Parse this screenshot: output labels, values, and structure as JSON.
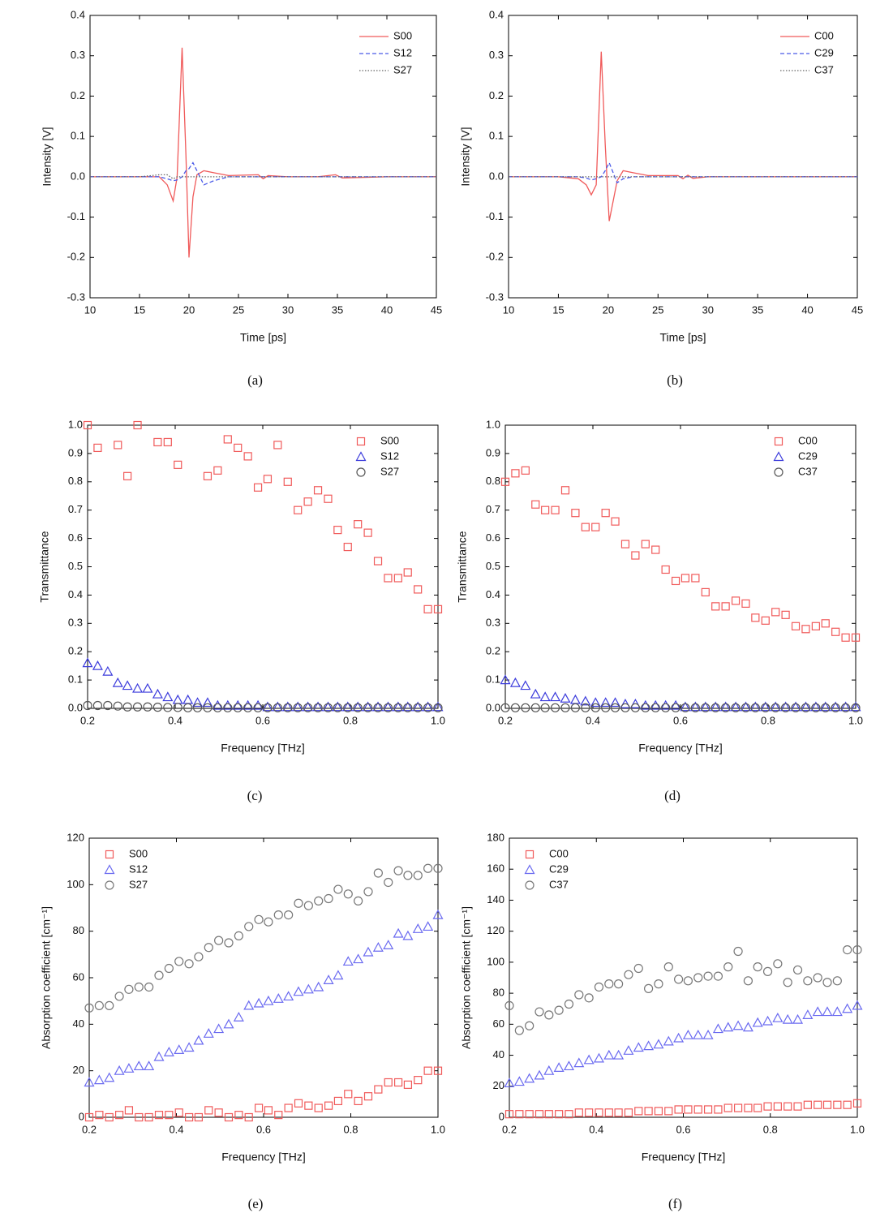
{
  "chart_data": [
    {
      "type": "line",
      "caption": "(a)",
      "x_label": "Time [ps]",
      "y_label": "Intensity [V]",
      "legend": "upper right",
      "xlim": [
        10,
        45
      ],
      "xticks": [
        10,
        15,
        20,
        25,
        30,
        35,
        40,
        45
      ],
      "ylim": [
        -0.3,
        0.4
      ],
      "yticks": [
        -0.3,
        -0.2,
        -0.1,
        {
          "value": 0,
          "label": "0.0"
        },
        0.1,
        0.2,
        0.3,
        0.4
      ],
      "x": [
        10,
        15,
        17,
        17.8,
        18.4,
        18.8,
        19.3,
        19.7,
        20,
        20.4,
        20.8,
        21.5,
        22.5,
        24,
        27,
        27.5,
        28,
        30,
        33,
        34.8,
        35.5,
        40,
        45
      ],
      "series": [
        {
          "name": "S00",
          "color": "#f05a5a",
          "style": "solid",
          "values": [
            0,
            0,
            0,
            -0.02,
            -0.06,
            0,
            0.32,
            0.05,
            -0.2,
            -0.05,
            0.005,
            0.015,
            0.01,
            0.003,
            0.005,
            -0.005,
            0.003,
            0,
            0,
            0.005,
            -0.003,
            0,
            0
          ]
        },
        {
          "name": "S12",
          "color": "#4a5ae8",
          "style": "dashed",
          "values": [
            0,
            0,
            0,
            -0.005,
            -0.01,
            -0.008,
            0,
            0.015,
            0.02,
            0.035,
            0.015,
            -0.02,
            -0.01,
            0,
            0,
            0,
            0,
            0,
            0,
            0,
            0,
            0,
            0
          ]
        },
        {
          "name": "S27",
          "color": "#666666",
          "style": "dotted",
          "values": [
            0,
            0,
            0.005,
            0.005,
            -0.005,
            0,
            0,
            0,
            0,
            0,
            0,
            0,
            0,
            0,
            0,
            0,
            0,
            0,
            0,
            0,
            0,
            0,
            0
          ]
        }
      ]
    },
    {
      "type": "line",
      "caption": "(b)",
      "x_label": "Time [ps]",
      "y_label": "Intensity [V]",
      "legend": "upper right",
      "xlim": [
        10,
        45
      ],
      "xticks": [
        10,
        15,
        20,
        25,
        30,
        35,
        40,
        45
      ],
      "ylim": [
        -0.3,
        0.4
      ],
      "yticks": [
        -0.3,
        -0.2,
        -0.1,
        {
          "value": 0,
          "label": "0.0"
        },
        0.1,
        0.2,
        0.3,
        0.4
      ],
      "x": [
        10,
        15,
        17,
        17.8,
        18.3,
        18.8,
        19.3,
        19.7,
        20.1,
        20.5,
        20.9,
        21.5,
        22.5,
        24,
        27,
        27.5,
        28,
        28.5,
        30,
        33,
        35,
        40,
        45
      ],
      "series": [
        {
          "name": "C00",
          "color": "#f05a5a",
          "style": "solid",
          "values": [
            0,
            0,
            -0.005,
            -0.02,
            -0.045,
            -0.02,
            0.31,
            0.08,
            -0.11,
            -0.06,
            -0.01,
            0.015,
            0.01,
            0.003,
            0.003,
            -0.005,
            0.004,
            -0.004,
            0,
            0,
            0,
            0,
            0
          ]
        },
        {
          "name": "C29",
          "color": "#4a5ae8",
          "style": "dashed",
          "values": [
            0,
            0,
            0,
            -0.003,
            -0.008,
            -0.005,
            0,
            0.015,
            0.035,
            0.01,
            -0.015,
            -0.005,
            0,
            0,
            0,
            0,
            0,
            0,
            0,
            0,
            0,
            0,
            0
          ]
        },
        {
          "name": "C37",
          "color": "#666666",
          "style": "dotted",
          "values": [
            0,
            0,
            0,
            0,
            0,
            0,
            0,
            0,
            0,
            0,
            0,
            0,
            0,
            0,
            0,
            0,
            0,
            0,
            0,
            0,
            0,
            0,
            0
          ]
        }
      ]
    },
    {
      "type": "scatter",
      "caption": "(c)",
      "x_label": "Frequency [THz]",
      "y_label": "Transmittance",
      "legend": "upper right",
      "xlim": [
        0.2,
        1
      ],
      "xticks": [
        0.2,
        0.4,
        0.6,
        0.8,
        {
          "value": 1,
          "label": "1.0"
        }
      ],
      "ylim": [
        0,
        1
      ],
      "yticks": [
        {
          "value": 0,
          "label": "0.0"
        },
        0.1,
        0.2,
        0.3,
        0.4,
        0.5,
        0.6,
        0.7,
        0.8,
        0.9,
        {
          "value": 1,
          "label": "1.0"
        }
      ],
      "x": [
        0.2,
        0.223,
        0.246,
        0.269,
        0.291,
        0.314,
        0.337,
        0.36,
        0.383,
        0.406,
        0.429,
        0.451,
        0.474,
        0.497,
        0.52,
        0.543,
        0.566,
        0.589,
        0.611,
        0.634,
        0.657,
        0.68,
        0.703,
        0.726,
        0.749,
        0.771,
        0.794,
        0.817,
        0.84,
        0.863,
        0.886,
        0.909,
        0.931,
        0.954,
        0.977,
        1
      ],
      "series": [
        {
          "name": "S00",
          "color": "#f05a5a",
          "marker": "square",
          "values": [
            1,
            0.92,
            null,
            0.93,
            0.82,
            1,
            null,
            0.94,
            0.94,
            0.86,
            null,
            null,
            0.82,
            0.84,
            0.95,
            0.92,
            0.89,
            0.78,
            0.81,
            0.93,
            0.8,
            0.7,
            0.73,
            0.77,
            0.74,
            0.63,
            0.57,
            0.65,
            0.62,
            0.52,
            0.46,
            0.46,
            0.48,
            0.42,
            0.35,
            0.35
          ]
        },
        {
          "name": "S12",
          "color": "#3c3cdc",
          "marker": "triangle",
          "values": [
            0.16,
            0.15,
            0.13,
            0.09,
            0.08,
            0.07,
            0.07,
            0.05,
            0.04,
            0.03,
            0.03,
            0.02,
            0.02,
            0.01,
            0.01,
            0.01,
            0.01,
            0.01,
            0.005,
            0.005,
            0.005,
            0.005,
            0.005,
            0.005,
            0.005,
            0.005,
            0.005,
            0.005,
            0.005,
            0.005,
            0.005,
            0.005,
            0.005,
            0.005,
            0.005,
            0.005
          ]
        },
        {
          "name": "S27",
          "color": "#555555",
          "marker": "circle",
          "values": [
            0.01,
            0.01,
            0.01,
            0.008,
            0.005,
            0.005,
            0.005,
            0.004,
            0.003,
            0.003,
            0.002,
            0.002,
            0.002,
            0.002,
            0.002,
            0.002,
            0.002,
            0.002,
            0.002,
            0.002,
            0.002,
            0.002,
            0.002,
            0.002,
            0.002,
            0.002,
            0.002,
            0.002,
            0.002,
            0.002,
            0.002,
            0.002,
            0.002,
            0.002,
            0.002,
            0.002
          ]
        }
      ]
    },
    {
      "type": "scatter",
      "caption": "(d)",
      "x_label": "Frequency [THz]",
      "y_label": "Transmittance",
      "legend": "upper right",
      "xlim": [
        0.2,
        1
      ],
      "xticks": [
        0.2,
        0.4,
        0.6,
        0.8,
        {
          "value": 1,
          "label": "1.0"
        }
      ],
      "ylim": [
        0,
        1
      ],
      "yticks": [
        {
          "value": 0,
          "label": "0.0"
        },
        0.1,
        0.2,
        0.3,
        0.4,
        0.5,
        0.6,
        0.7,
        0.8,
        0.9,
        {
          "value": 1,
          "label": "1.0"
        }
      ],
      "x": [
        0.2,
        0.223,
        0.246,
        0.269,
        0.291,
        0.314,
        0.337,
        0.36,
        0.383,
        0.406,
        0.429,
        0.451,
        0.474,
        0.497,
        0.52,
        0.543,
        0.566,
        0.589,
        0.611,
        0.634,
        0.657,
        0.68,
        0.703,
        0.726,
        0.749,
        0.771,
        0.794,
        0.817,
        0.84,
        0.863,
        0.886,
        0.909,
        0.931,
        0.954,
        0.977,
        1
      ],
      "series": [
        {
          "name": "C00",
          "color": "#f05a5a",
          "marker": "square",
          "values": [
            0.8,
            0.83,
            0.84,
            0.72,
            0.7,
            0.7,
            0.77,
            0.69,
            0.64,
            0.64,
            0.69,
            0.66,
            0.58,
            0.54,
            0.58,
            0.56,
            0.49,
            0.45,
            0.46,
            0.46,
            0.41,
            0.36,
            0.36,
            0.38,
            0.37,
            0.32,
            0.31,
            0.34,
            0.33,
            0.29,
            0.28,
            0.29,
            0.3,
            0.27,
            0.25,
            0.25
          ]
        },
        {
          "name": "C29",
          "color": "#3c3cdc",
          "marker": "triangle",
          "values": [
            0.1,
            0.09,
            0.08,
            0.05,
            0.04,
            0.04,
            0.035,
            0.03,
            0.025,
            0.02,
            0.02,
            0.02,
            0.015,
            0.015,
            0.01,
            0.01,
            0.01,
            0.01,
            0.005,
            0.005,
            0.005,
            0.005,
            0.005,
            0.005,
            0.005,
            0.005,
            0.005,
            0.005,
            0.005,
            0.005,
            0.005,
            0.005,
            0.005,
            0.005,
            0.005,
            0.005
          ]
        },
        {
          "name": "C37",
          "color": "#555555",
          "marker": "circle",
          "values": [
            0.002,
            0.002,
            0.002,
            0.002,
            0.002,
            0.002,
            0.002,
            0.002,
            0.002,
            0.002,
            0.002,
            0.002,
            0.002,
            0.002,
            0.002,
            0.002,
            0.002,
            0.002,
            0.002,
            0.002,
            0.002,
            0.002,
            0.002,
            0.002,
            0.002,
            0.002,
            0.002,
            0.002,
            0.002,
            0.002,
            0.002,
            0.002,
            0.002,
            0.002,
            0.002,
            0.002
          ]
        }
      ]
    },
    {
      "type": "scatter",
      "caption": "(e)",
      "x_label": "Frequency [THz]",
      "y_label": "Absorption coefficient [cm⁻¹]",
      "legend": "upper left",
      "xlim": [
        0.2,
        1
      ],
      "xticks": [
        0.2,
        0.4,
        0.6,
        0.8,
        {
          "value": 1,
          "label": "1.0"
        }
      ],
      "ylim": [
        0,
        120
      ],
      "yticks": [
        0,
        20,
        40,
        60,
        80,
        100,
        120
      ],
      "x": [
        0.2,
        0.223,
        0.246,
        0.269,
        0.291,
        0.314,
        0.337,
        0.36,
        0.383,
        0.406,
        0.429,
        0.451,
        0.474,
        0.497,
        0.52,
        0.543,
        0.566,
        0.589,
        0.611,
        0.634,
        0.657,
        0.68,
        0.703,
        0.726,
        0.749,
        0.771,
        0.794,
        0.817,
        0.84,
        0.863,
        0.886,
        0.909,
        0.931,
        0.954,
        0.977,
        1
      ],
      "series": [
        {
          "name": "S00",
          "color": "#f05a5a",
          "marker": "square",
          "values": [
            0,
            1,
            0,
            1,
            3,
            0,
            0,
            1,
            1,
            2,
            0,
            0,
            3,
            2,
            0,
            1,
            0,
            4,
            3,
            1,
            4,
            6,
            5,
            4,
            5,
            7,
            10,
            7,
            9,
            12,
            15,
            15,
            14,
            16,
            20,
            20
          ]
        },
        {
          "name": "S12",
          "color": "#6a6af0",
          "marker": "triangle",
          "values": [
            15,
            16,
            17,
            20,
            21,
            22,
            22,
            26,
            28,
            29,
            30,
            33,
            36,
            38,
            40,
            43,
            48,
            49,
            50,
            51,
            52,
            54,
            55,
            56,
            59,
            61,
            67,
            68,
            71,
            73,
            74,
            79,
            78,
            81,
            82,
            87
          ]
        },
        {
          "name": "S27",
          "color": "#777777",
          "marker": "circle",
          "values": [
            47,
            48,
            48,
            52,
            55,
            56,
            56,
            61,
            64,
            67,
            66,
            69,
            73,
            76,
            75,
            78,
            82,
            85,
            84,
            87,
            87,
            92,
            91,
            93,
            94,
            98,
            96,
            93,
            97,
            105,
            101,
            106,
            104,
            104,
            107,
            107
          ]
        }
      ]
    },
    {
      "type": "scatter",
      "caption": "(f)",
      "x_label": "Frequency [THz]",
      "y_label": "Absorption coefficient [cm⁻¹]",
      "legend": "upper left",
      "xlim": [
        0.2,
        1
      ],
      "xticks": [
        0.2,
        0.4,
        0.6,
        0.8,
        {
          "value": 1,
          "label": "1.0"
        }
      ],
      "ylim": [
        0,
        180
      ],
      "yticks": [
        0,
        20,
        40,
        60,
        80,
        100,
        120,
        140,
        160,
        180
      ],
      "x": [
        0.2,
        0.223,
        0.246,
        0.269,
        0.291,
        0.314,
        0.337,
        0.36,
        0.383,
        0.406,
        0.429,
        0.451,
        0.474,
        0.497,
        0.52,
        0.543,
        0.566,
        0.589,
        0.611,
        0.634,
        0.657,
        0.68,
        0.703,
        0.726,
        0.749,
        0.771,
        0.794,
        0.817,
        0.84,
        0.863,
        0.886,
        0.909,
        0.931,
        0.954,
        0.977,
        1
      ],
      "series": [
        {
          "name": "C00",
          "color": "#f05a5a",
          "marker": "square",
          "values": [
            2,
            2,
            2,
            2,
            2,
            2,
            2,
            3,
            3,
            3,
            3,
            3,
            3,
            4,
            4,
            4,
            4,
            5,
            5,
            5,
            5,
            5,
            6,
            6,
            6,
            6,
            7,
            7,
            7,
            7,
            8,
            8,
            8,
            8,
            8,
            9
          ]
        },
        {
          "name": "C29",
          "color": "#6a6af0",
          "marker": "triangle",
          "values": [
            22,
            23,
            25,
            27,
            30,
            32,
            33,
            35,
            37,
            38,
            40,
            40,
            43,
            45,
            46,
            47,
            49,
            51,
            53,
            53,
            53,
            57,
            58,
            59,
            58,
            61,
            62,
            64,
            63,
            63,
            66,
            68,
            68,
            68,
            70,
            72
          ]
        },
        {
          "name": "C37",
          "color": "#777777",
          "marker": "circle",
          "values": [
            72,
            56,
            59,
            68,
            66,
            69,
            73,
            79,
            77,
            84,
            86,
            86,
            92,
            96,
            83,
            86,
            97,
            89,
            88,
            90,
            91,
            91,
            97,
            107,
            88,
            97,
            94,
            99,
            87,
            95,
            88,
            90,
            87,
            88,
            108,
            108
          ]
        }
      ]
    }
  ]
}
